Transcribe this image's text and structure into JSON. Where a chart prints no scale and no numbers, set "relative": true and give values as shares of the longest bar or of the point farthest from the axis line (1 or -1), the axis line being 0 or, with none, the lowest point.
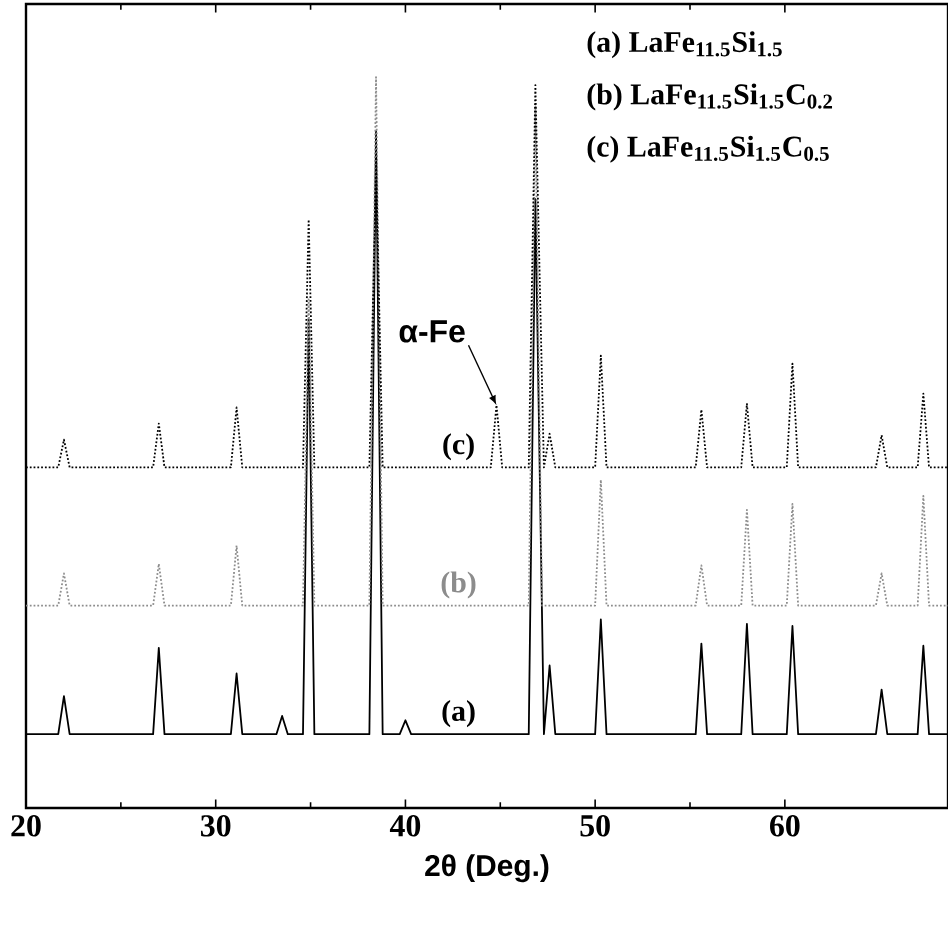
{
  "chart_data": {
    "type": "line",
    "relative": true,
    "xlabel": "2θ (Deg.)",
    "xlim": [
      20,
      68.6
    ],
    "xticks": [
      20,
      30,
      40,
      50,
      60
    ],
    "annotations": [
      "(a) LaFe$_{11.5}$Si$_{1.5}$",
      "(b) LaFe$_{11.5}$Si$_{1.5}$C$_{0.2}$",
      "(c) LaFe$_{11.5}$Si$_{1.5}$C$_{0.5}$",
      {
        "text": "α-Fe",
        "x": 44.8,
        "y": 0.551
      }
    ],
    "series": [
      {
        "name": "(a)",
        "color": "#000000",
        "line_style": "solid",
        "x": [
          20,
          21.7,
          22.0,
          22.3,
          26.7,
          27.0,
          27.3,
          30.8,
          31.1,
          31.4,
          33.2,
          33.5,
          33.8,
          34.6,
          34.9,
          35.2,
          38.1,
          38.45,
          38.8,
          39.7,
          40.0,
          40.3,
          46.5,
          46.85,
          47.3,
          47.6,
          47.9,
          50.0,
          50.3,
          50.6,
          55.3,
          55.6,
          55.9,
          57.7,
          58.0,
          58.3,
          60.1,
          60.4,
          60.7,
          64.8,
          65.1,
          65.4,
          67.0,
          67.3,
          67.6,
          68.6
        ],
        "values": [
          0.101,
          0.101,
          0.153,
          0.101,
          0.101,
          0.219,
          0.101,
          0.101,
          0.184,
          0.101,
          0.101,
          0.126,
          0.101,
          0.101,
          0.668,
          0.101,
          0.101,
          0.926,
          0.101,
          0.101,
          0.12,
          0.101,
          0.101,
          0.833,
          0.101,
          0.195,
          0.101,
          0.101,
          0.258,
          0.101,
          0.101,
          0.225,
          0.101,
          0.101,
          0.252,
          0.101,
          0.101,
          0.249,
          0.101,
          0.101,
          0.162,
          0.101,
          0.101,
          0.222,
          0.101,
          0.101
        ]
      },
      {
        "name": "(b)",
        "color": "#8c8c8c",
        "line_style": "dotted",
        "x": [
          20,
          21.7,
          22.0,
          22.3,
          26.7,
          27.0,
          27.3,
          30.8,
          31.1,
          31.4,
          34.6,
          34.9,
          35.2,
          38.1,
          38.45,
          38.8,
          46.5,
          46.85,
          47.2,
          50.0,
          50.3,
          50.6,
          55.3,
          55.6,
          55.9,
          57.7,
          58.0,
          58.3,
          60.1,
          60.4,
          60.7,
          64.8,
          65.1,
          65.4,
          67.0,
          67.3,
          67.6,
          68.6
        ],
        "values": [
          0.277,
          0.277,
          0.321,
          0.277,
          0.277,
          0.334,
          0.277,
          0.277,
          0.359,
          0.277,
          0.277,
          0.696,
          0.277,
          0.277,
          1.0,
          0.277,
          0.277,
          0.96,
          0.277,
          0.277,
          0.449,
          0.277,
          0.277,
          0.332,
          0.277,
          0.277,
          0.408,
          0.277,
          0.277,
          0.416,
          0.277,
          0.277,
          0.321,
          0.277,
          0.277,
          0.427,
          0.277,
          0.277
        ]
      },
      {
        "name": "(c)",
        "color": "#000000",
        "line_style": "dotted",
        "x": [
          20,
          21.7,
          22.0,
          22.3,
          26.7,
          27.0,
          27.3,
          30.8,
          31.1,
          31.4,
          34.6,
          34.9,
          35.2,
          38.1,
          38.45,
          38.8,
          44.5,
          44.8,
          45.1,
          46.5,
          46.85,
          47.3,
          47.6,
          47.9,
          50.0,
          50.3,
          50.6,
          55.3,
          55.6,
          55.9,
          57.7,
          58.0,
          58.3,
          60.1,
          60.4,
          60.7,
          64.8,
          65.1,
          65.4,
          67.0,
          67.3,
          67.6,
          68.6
        ],
        "values": [
          0.466,
          0.466,
          0.504,
          0.466,
          0.466,
          0.526,
          0.466,
          0.466,
          0.548,
          0.466,
          0.466,
          0.805,
          0.466,
          0.466,
          0.888,
          0.466,
          0.466,
          0.551,
          0.466,
          0.466,
          0.989,
          0.466,
          0.512,
          0.466,
          0.466,
          0.619,
          0.466,
          0.466,
          0.545,
          0.466,
          0.466,
          0.553,
          0.466,
          0.466,
          0.608,
          0.466,
          0.466,
          0.51,
          0.466,
          0.466,
          0.567,
          0.466,
          0.466
        ]
      }
    ]
  }
}
